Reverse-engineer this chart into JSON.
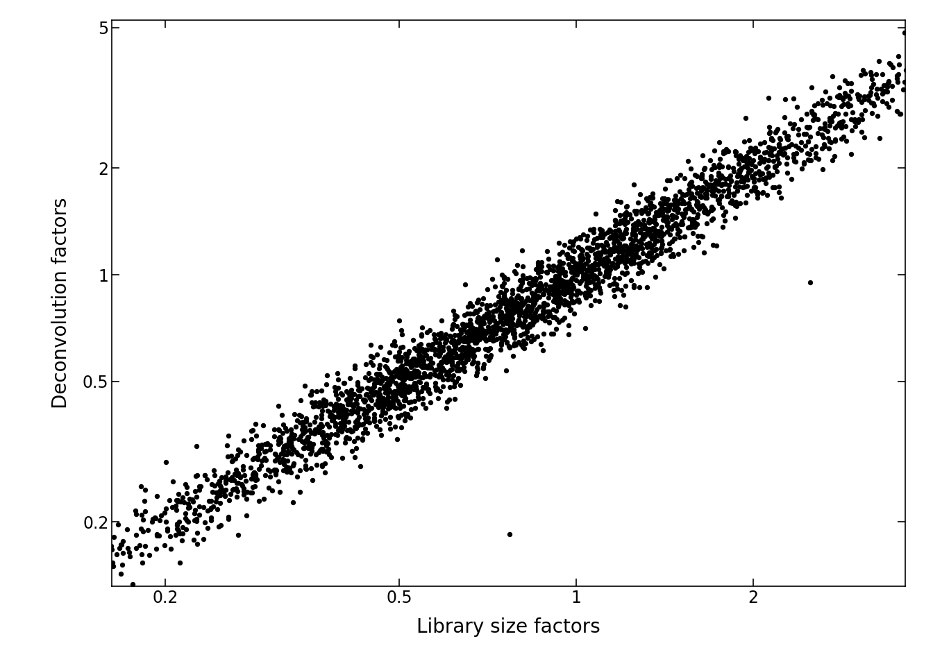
{
  "xlabel": "Library size factors",
  "ylabel": "Deconvolution factors",
  "background_color": "#ffffff",
  "point_color": "#000000",
  "point_size": 28,
  "alpha": 1.0,
  "xlim_log": [
    -0.79,
    0.56
  ],
  "ylim_log": [
    -0.88,
    0.72
  ],
  "xticks": [
    0.2,
    0.5,
    1.0,
    2.0
  ],
  "yticks": [
    0.2,
    0.5,
    1.0,
    2.0,
    5.0
  ],
  "xlabel_fontsize": 20,
  "ylabel_fontsize": 20,
  "tick_fontsize": 17,
  "n_points": 3005,
  "seed": 42,
  "slope": 1.0,
  "intercept_log": 0.0,
  "noise_std": 0.055,
  "x_log_mean": -0.1,
  "x_log_std": 0.36
}
